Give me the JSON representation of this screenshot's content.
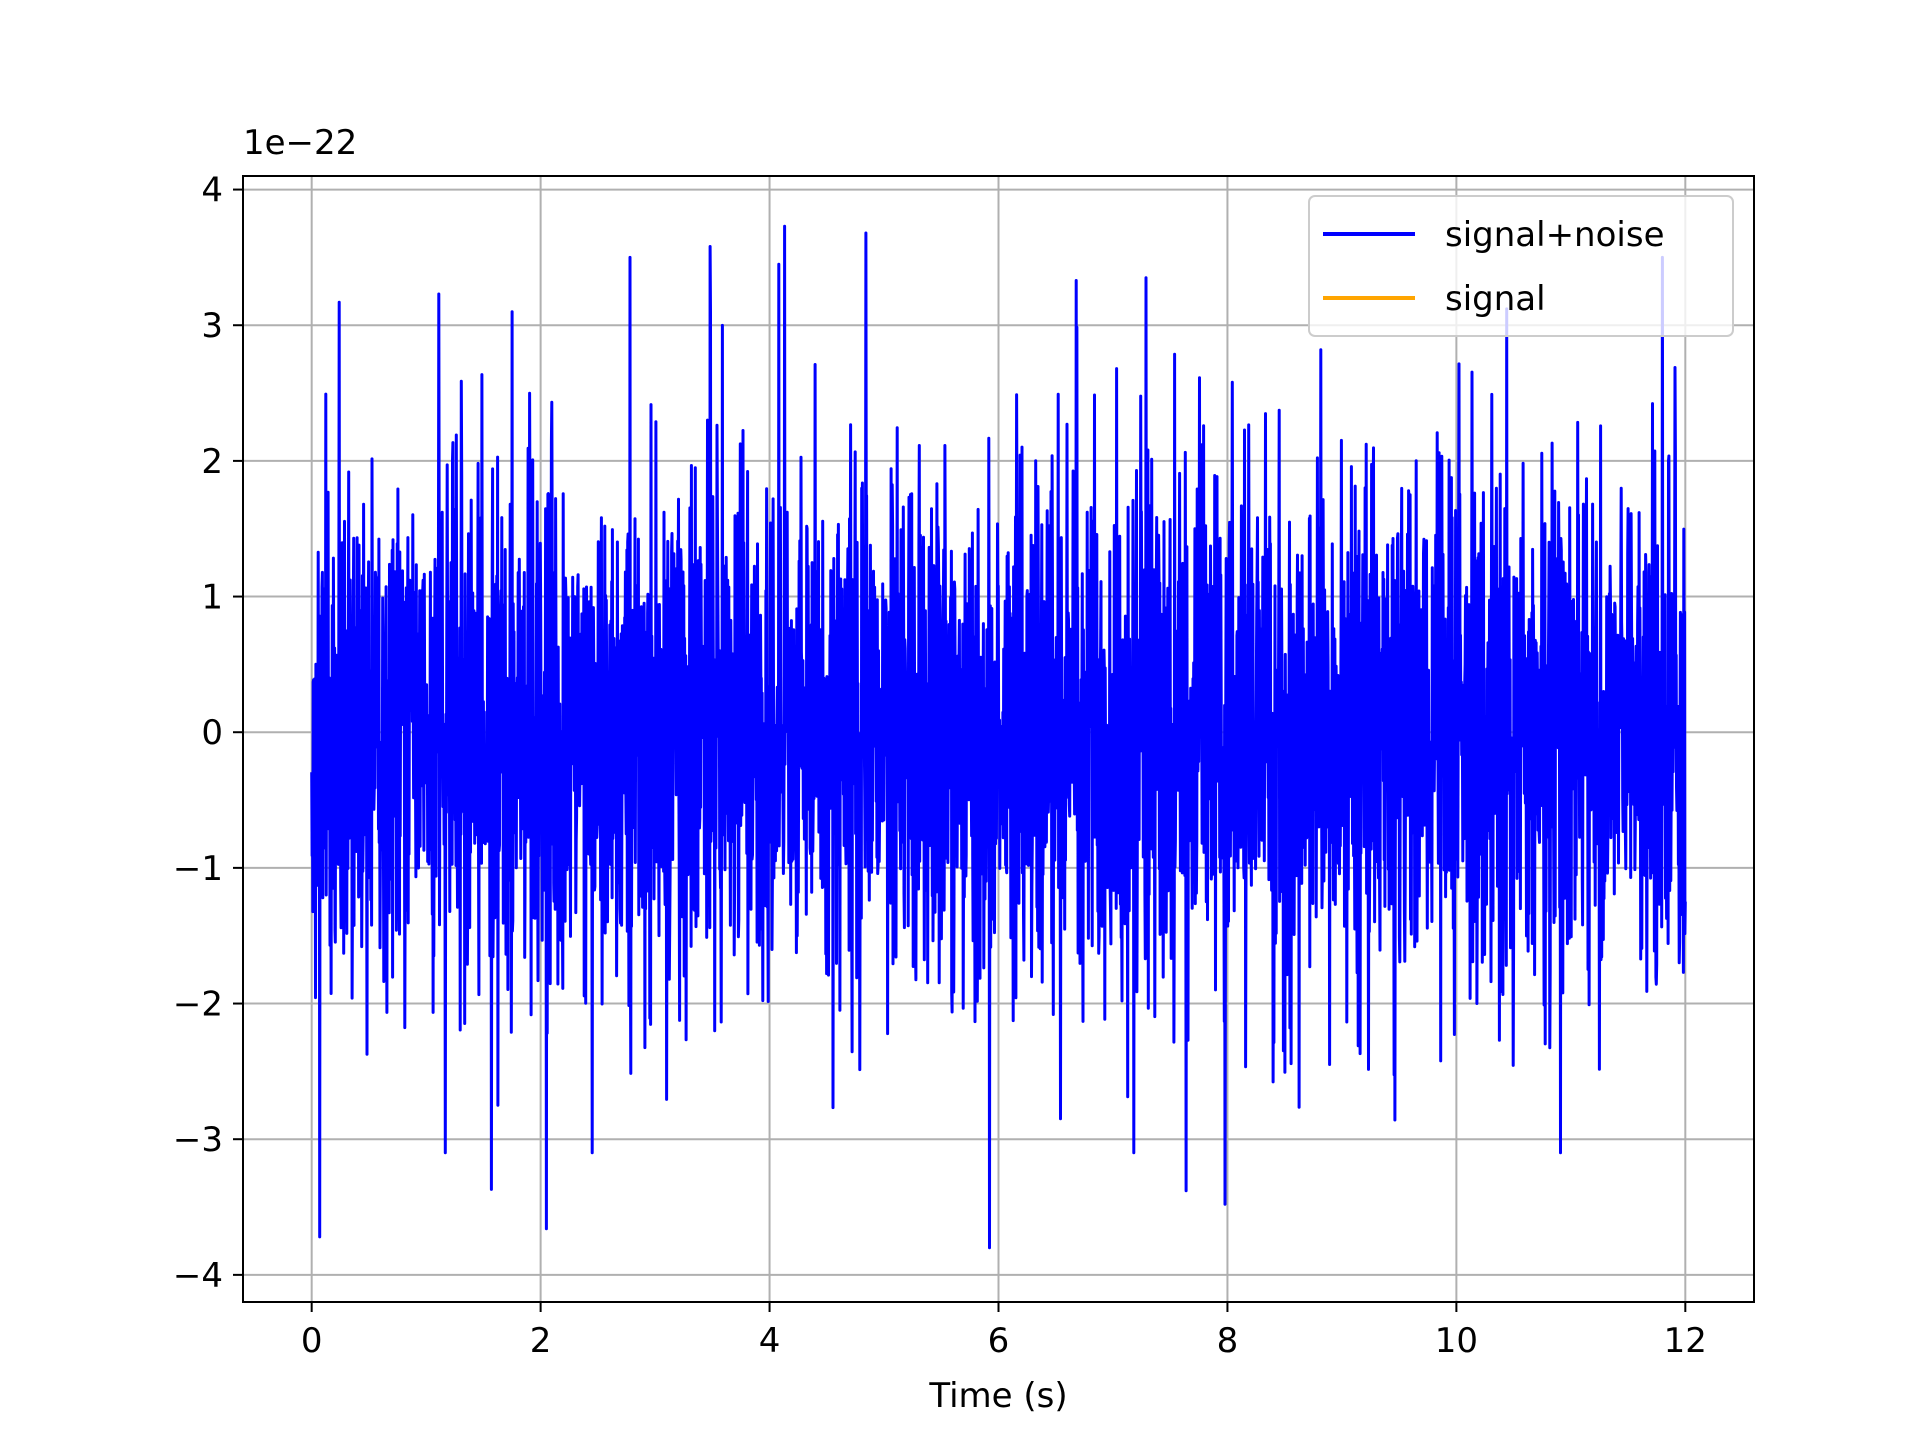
{
  "chart_data": {
    "type": "line",
    "title": "",
    "xlabel": "Time (s)",
    "ylabel": "",
    "y_offset_label": "1e−22",
    "xlim": [
      -0.6,
      12.6
    ],
    "ylim": [
      -4.2,
      4.1
    ],
    "x_ticks": [
      0,
      2,
      4,
      6,
      8,
      10,
      12
    ],
    "x_tick_labels": [
      "0",
      "2",
      "4",
      "6",
      "8",
      "10",
      "12"
    ],
    "y_ticks": [
      -4,
      -3,
      -2,
      -1,
      0,
      1,
      2,
      3,
      4
    ],
    "y_tick_labels": [
      "−4",
      "−3",
      "−2",
      "−1",
      "0",
      "1",
      "2",
      "3",
      "4"
    ],
    "grid": true,
    "legend": {
      "placement": "top-right"
    },
    "series": [
      {
        "name": "signal+noise",
        "color": "#0000ff",
        "x_range": [
          0,
          12
        ],
        "peaks": [
          {
            "x": 0.07,
            "y": -3.72
          },
          {
            "x": 0.24,
            "y": 3.17
          },
          {
            "x": 1.11,
            "y": 3.23
          },
          {
            "x": 1.57,
            "y": -3.37
          },
          {
            "x": 2.05,
            "y": -3.66
          },
          {
            "x": 2.78,
            "y": 3.5
          },
          {
            "x": 3.48,
            "y": 3.58
          },
          {
            "x": 4.08,
            "y": 3.45
          },
          {
            "x": 4.13,
            "y": 3.73
          },
          {
            "x": 4.84,
            "y": 3.68
          },
          {
            "x": 5.92,
            "y": -3.8
          },
          {
            "x": 6.68,
            "y": 3.33
          },
          {
            "x": 7.29,
            "y": 3.35
          },
          {
            "x": 7.64,
            "y": -3.38
          },
          {
            "x": 7.98,
            "y": -3.48
          },
          {
            "x": 10.44,
            "y": 3.12
          },
          {
            "x": 11.8,
            "y": 3.5
          }
        ]
      },
      {
        "name": "signal",
        "color": "#ffa500",
        "values": []
      }
    ]
  }
}
